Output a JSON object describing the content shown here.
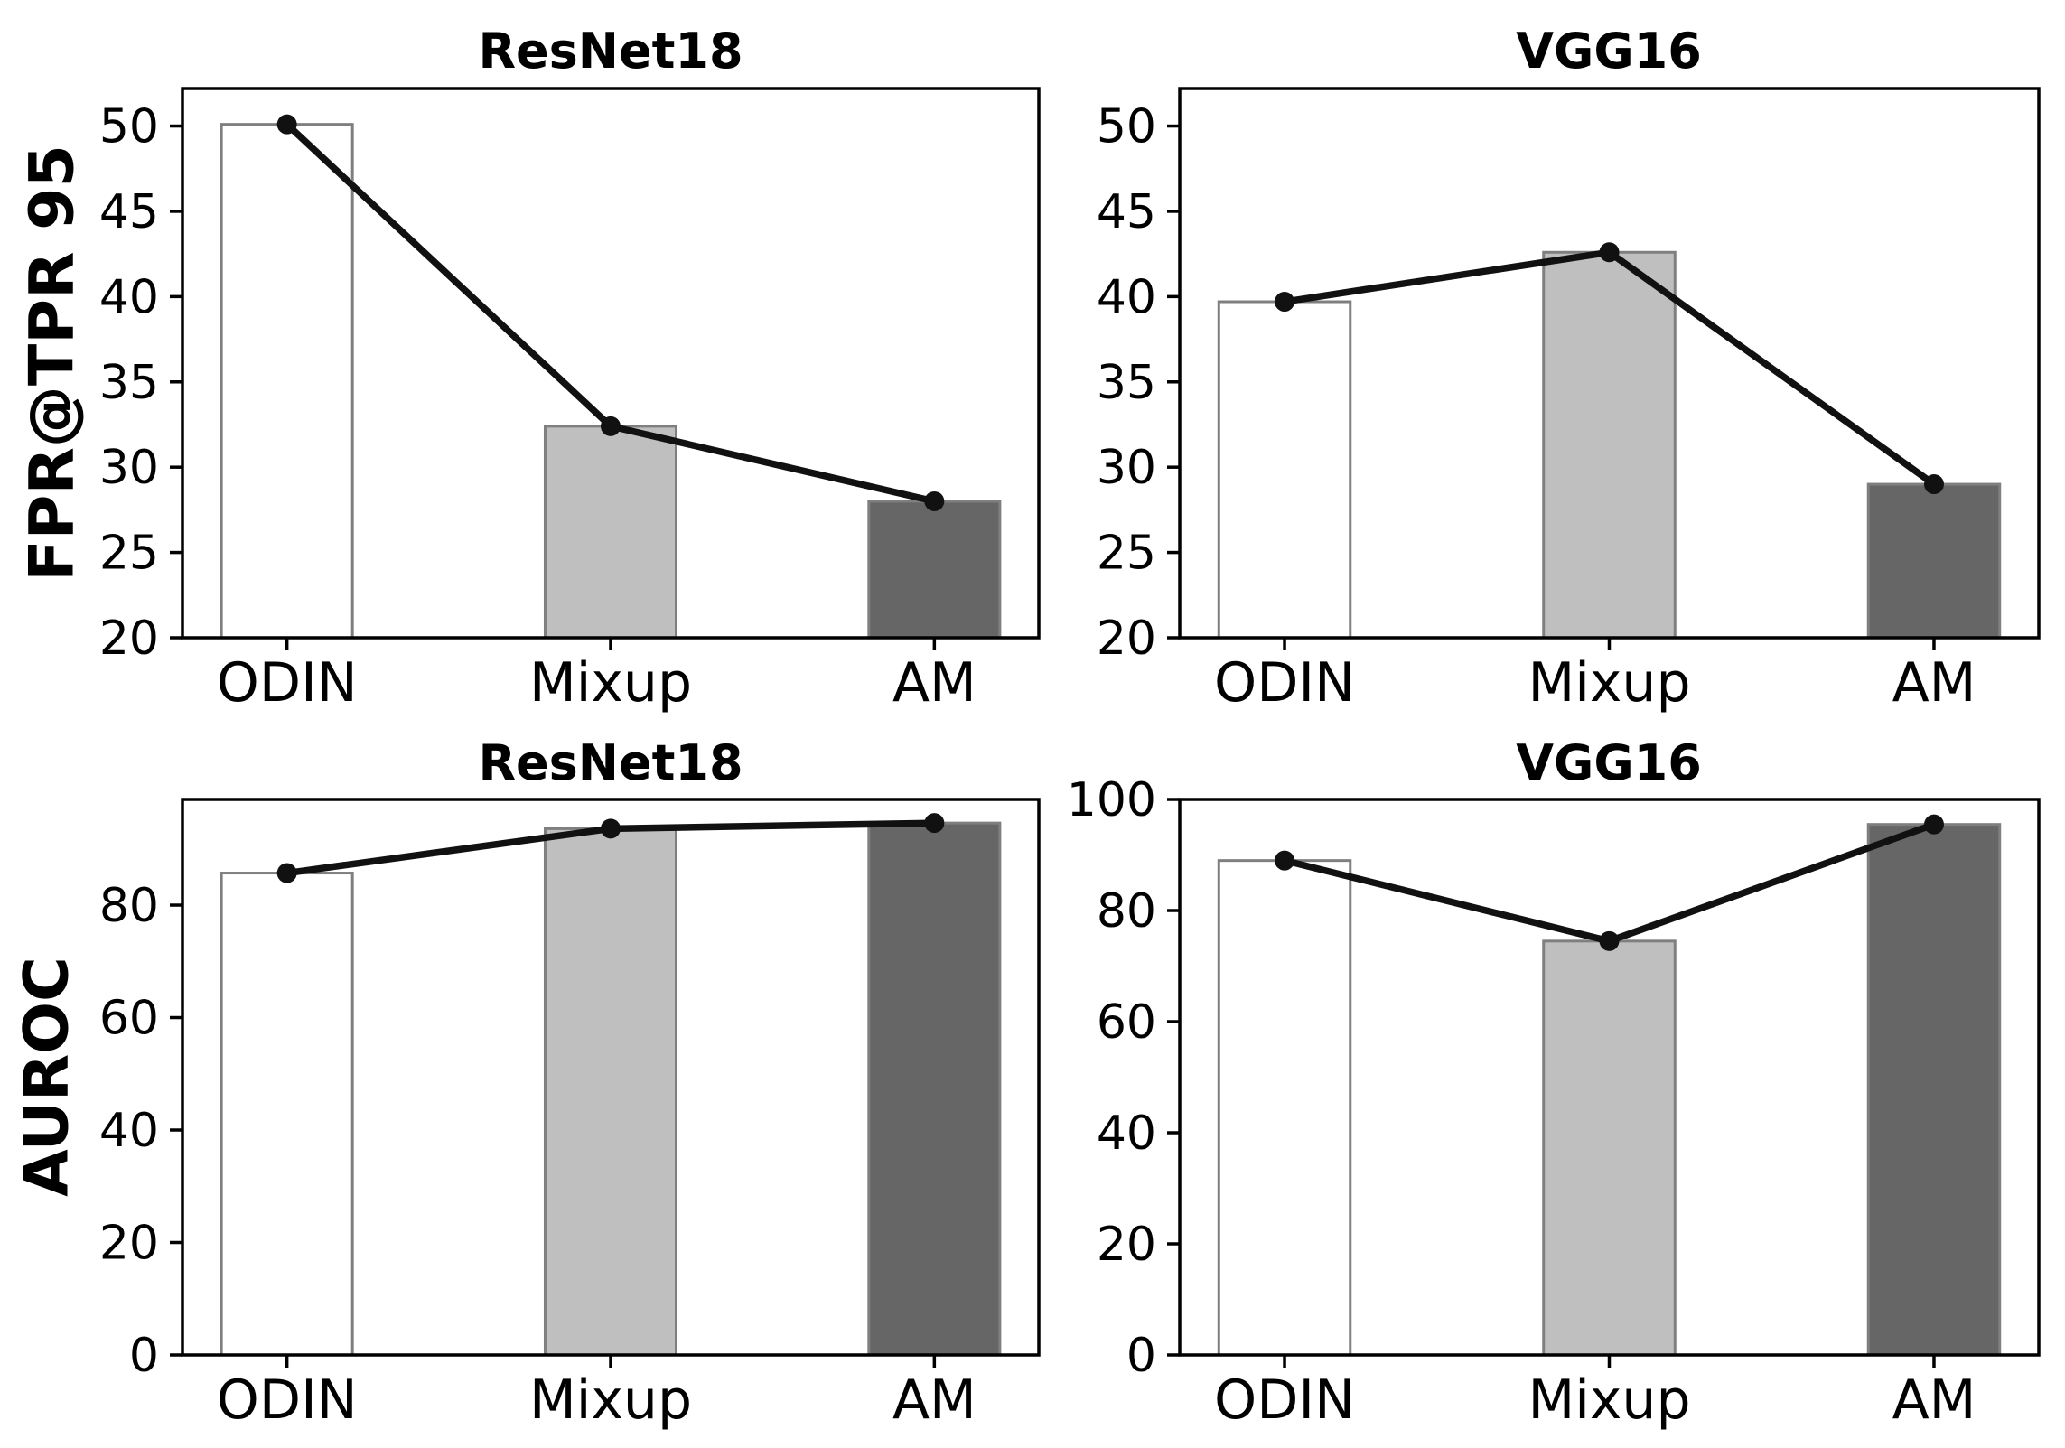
{
  "figure": {
    "row_labels": [
      "FPR@TPR 95",
      "AUROC"
    ],
    "column_titles": [
      "ResNet18",
      "VGG16"
    ],
    "categories": [
      "ODIN",
      "Mixup",
      "AM"
    ],
    "colors": {
      "background": "#ffffff",
      "bar_fills": [
        "#ffffff",
        "#bfbfbf",
        "#666666"
      ],
      "bar_edge": "#7f7f7f",
      "line": "#111111",
      "marker": "#111111",
      "axis": "#000000",
      "text": "#000000"
    }
  },
  "chart_data": [
    {
      "type": "bar",
      "overlay": "line-with-markers",
      "title": "ResNet18",
      "ylabel": "FPR@TPR 95",
      "xlabel": "",
      "categories": [
        "ODIN",
        "Mixup",
        "AM"
      ],
      "values": [
        50.1,
        32.4,
        28.0
      ],
      "line_values": [
        50.1,
        32.4,
        28.0
      ],
      "yticks": [
        20,
        25,
        30,
        35,
        40,
        45,
        50
      ],
      "ylim": [
        20,
        52.2
      ],
      "grid": false,
      "legend": "none"
    },
    {
      "type": "bar",
      "overlay": "line-with-markers",
      "title": "VGG16",
      "ylabel": "FPR@TPR 95",
      "xlabel": "",
      "categories": [
        "ODIN",
        "Mixup",
        "AM"
      ],
      "values": [
        39.7,
        42.6,
        29.0
      ],
      "line_values": [
        39.7,
        42.6,
        29.0
      ],
      "yticks": [
        20,
        25,
        30,
        35,
        40,
        45,
        50
      ],
      "ylim": [
        20,
        52.2
      ],
      "grid": false,
      "legend": "none"
    },
    {
      "type": "bar",
      "overlay": "line-with-markers",
      "title": "ResNet18",
      "ylabel": "AUROC",
      "xlabel": "",
      "categories": [
        "ODIN",
        "Mixup",
        "AM"
      ],
      "values": [
        85.7,
        93.6,
        94.6
      ],
      "line_values": [
        85.7,
        93.6,
        94.6
      ],
      "yticks": [
        0,
        20,
        40,
        60,
        80
      ],
      "ylim": [
        0,
        98.8
      ],
      "grid": false,
      "legend": "none"
    },
    {
      "type": "bar",
      "overlay": "line-with-markers",
      "title": "VGG16",
      "ylabel": "AUROC",
      "xlabel": "",
      "categories": [
        "ODIN",
        "Mixup",
        "AM"
      ],
      "values": [
        89.0,
        74.5,
        95.5
      ],
      "line_values": [
        89.0,
        74.5,
        95.5
      ],
      "yticks": [
        0,
        20,
        40,
        60,
        80,
        100
      ],
      "ylim": [
        0,
        100
      ],
      "grid": false,
      "legend": "none"
    }
  ]
}
